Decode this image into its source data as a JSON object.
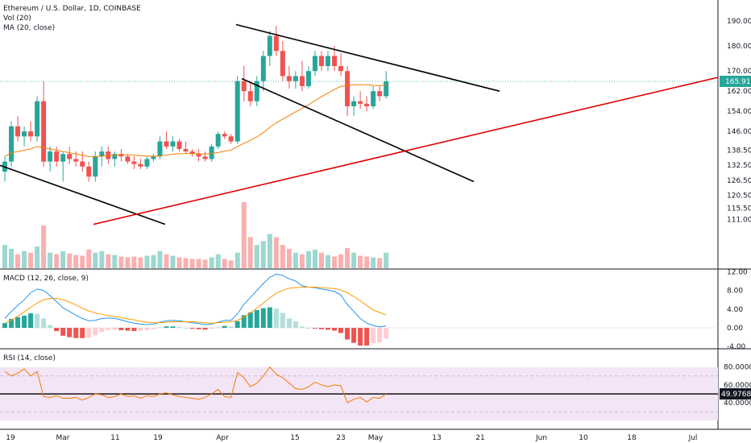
{
  "header": {
    "symbol_title": "Ethereum / U.S. Dollar, 1D, COINBASE",
    "vol_label": "Vol (20)",
    "ma_label": "MA (20, close)"
  },
  "panes": {
    "macd_label": "MACD (12, 26, close, 9)",
    "rsi_label": "RSI (14, close)"
  },
  "price_tag": "165.91",
  "rsi_tag": "49.9768",
  "colors": {
    "up": "#26a69a",
    "down": "#ef5350",
    "ma": "#f57c00",
    "macd_line": "#2196f3",
    "signal_line": "#ff9800",
    "trend_black": "#000000",
    "trend_red": "#e00000",
    "rsi_line": "#f57c00",
    "rsi_band": "#f3e5f5",
    "price_tag_bg": "#26a69a",
    "rsi_tag_bg": "#131722"
  },
  "chart_data": [
    {
      "type": "candlestick",
      "title": "Ethereum / U.S. Dollar, 1D, COINBASE",
      "y_ticks": [
        "190.00",
        "180.00",
        "170.00",
        "162.00",
        "154.00",
        "146.00",
        "138.50",
        "132.50",
        "126.50",
        "120.50",
        "115.50",
        "111.00"
      ],
      "x_ticks": [
        "19",
        "Mar",
        "11",
        "19",
        "Apr",
        "15",
        "23",
        "May",
        "13",
        "21",
        "Jun",
        "10",
        "18",
        "Jul"
      ],
      "last_price": 165.91,
      "candles": [
        {
          "o": 130,
          "h": 136,
          "l": 126,
          "c": 134
        },
        {
          "o": 134,
          "h": 150,
          "l": 132,
          "c": 148
        },
        {
          "o": 148,
          "h": 152,
          "l": 142,
          "c": 144
        },
        {
          "o": 144,
          "h": 148,
          "l": 140,
          "c": 146
        },
        {
          "o": 146,
          "h": 150,
          "l": 142,
          "c": 144
        },
        {
          "o": 144,
          "h": 160,
          "l": 142,
          "c": 158
        },
        {
          "o": 158,
          "h": 166,
          "l": 132,
          "c": 134
        },
        {
          "o": 134,
          "h": 140,
          "l": 130,
          "c": 138
        },
        {
          "o": 138,
          "h": 140,
          "l": 132,
          "c": 134
        },
        {
          "o": 134,
          "h": 138,
          "l": 126,
          "c": 137
        },
        {
          "o": 137,
          "h": 140,
          "l": 133,
          "c": 135
        },
        {
          "o": 135,
          "h": 138,
          "l": 132,
          "c": 134
        },
        {
          "o": 134,
          "h": 138,
          "l": 130,
          "c": 132
        },
        {
          "o": 132,
          "h": 134,
          "l": 126,
          "c": 128
        },
        {
          "o": 128,
          "h": 138,
          "l": 126,
          "c": 136
        },
        {
          "o": 136,
          "h": 140,
          "l": 132,
          "c": 138
        },
        {
          "o": 138,
          "h": 140,
          "l": 133,
          "c": 135
        },
        {
          "o": 135,
          "h": 138,
          "l": 132,
          "c": 137
        },
        {
          "o": 137,
          "h": 139,
          "l": 134,
          "c": 136
        },
        {
          "o": 136,
          "h": 137,
          "l": 133,
          "c": 134
        },
        {
          "o": 134,
          "h": 136,
          "l": 131,
          "c": 133
        },
        {
          "o": 133,
          "h": 135,
          "l": 131,
          "c": 132
        },
        {
          "o": 132,
          "h": 136,
          "l": 131,
          "c": 135
        },
        {
          "o": 135,
          "h": 137,
          "l": 134,
          "c": 136
        },
        {
          "o": 136,
          "h": 144,
          "l": 135,
          "c": 142
        },
        {
          "o": 142,
          "h": 146,
          "l": 139,
          "c": 140
        },
        {
          "o": 140,
          "h": 144,
          "l": 138,
          "c": 142
        },
        {
          "o": 142,
          "h": 143,
          "l": 138,
          "c": 139
        },
        {
          "o": 139,
          "h": 142,
          "l": 137,
          "c": 138
        },
        {
          "o": 138,
          "h": 139,
          "l": 136,
          "c": 137
        },
        {
          "o": 137,
          "h": 139,
          "l": 134,
          "c": 136
        },
        {
          "o": 136,
          "h": 138,
          "l": 134,
          "c": 135
        },
        {
          "o": 135,
          "h": 141,
          "l": 134,
          "c": 140
        },
        {
          "o": 140,
          "h": 146,
          "l": 139,
          "c": 145
        },
        {
          "o": 145,
          "h": 146,
          "l": 143,
          "c": 144
        },
        {
          "o": 144,
          "h": 145,
          "l": 141,
          "c": 142
        },
        {
          "o": 142,
          "h": 168,
          "l": 141,
          "c": 166
        },
        {
          "o": 166,
          "h": 172,
          "l": 158,
          "c": 162
        },
        {
          "o": 162,
          "h": 166,
          "l": 156,
          "c": 158
        },
        {
          "o": 158,
          "h": 168,
          "l": 156,
          "c": 166
        },
        {
          "o": 166,
          "h": 178,
          "l": 162,
          "c": 176
        },
        {
          "o": 176,
          "h": 186,
          "l": 172,
          "c": 184
        },
        {
          "o": 184,
          "h": 188,
          "l": 176,
          "c": 178
        },
        {
          "o": 178,
          "h": 182,
          "l": 166,
          "c": 168
        },
        {
          "o": 168,
          "h": 172,
          "l": 163,
          "c": 166
        },
        {
          "o": 166,
          "h": 170,
          "l": 163,
          "c": 168
        },
        {
          "o": 168,
          "h": 174,
          "l": 162,
          "c": 164
        },
        {
          "o": 164,
          "h": 172,
          "l": 163,
          "c": 170
        },
        {
          "o": 170,
          "h": 178,
          "l": 168,
          "c": 176
        },
        {
          "o": 176,
          "h": 178,
          "l": 170,
          "c": 172
        },
        {
          "o": 172,
          "h": 178,
          "l": 170,
          "c": 176
        },
        {
          "o": 176,
          "h": 180,
          "l": 170,
          "c": 172
        },
        {
          "o": 172,
          "h": 177,
          "l": 168,
          "c": 170
        },
        {
          "o": 170,
          "h": 172,
          "l": 152,
          "c": 156
        },
        {
          "o": 156,
          "h": 160,
          "l": 152,
          "c": 158
        },
        {
          "o": 158,
          "h": 162,
          "l": 155,
          "c": 157
        },
        {
          "o": 157,
          "h": 160,
          "l": 154,
          "c": 156
        },
        {
          "o": 156,
          "h": 164,
          "l": 155,
          "c": 162
        },
        {
          "o": 162,
          "h": 164,
          "l": 158,
          "c": 160
        },
        {
          "o": 160,
          "h": 170,
          "l": 159,
          "c": 165.91
        }
      ],
      "ma20": [
        136,
        137.5,
        138,
        138.5,
        139,
        140,
        139.5,
        139,
        138.5,
        138,
        137.5,
        137,
        136.5,
        136,
        136,
        136.2,
        136.4,
        136.6,
        136.8,
        136.7,
        136.5,
        136.3,
        136.2,
        136.1,
        136.3,
        136.6,
        136.9,
        137.1,
        137.2,
        137.2,
        137.1,
        137,
        137.2,
        137.6,
        138.1,
        138.6,
        140,
        141.3,
        142.4,
        143.8,
        145.5,
        147.6,
        149.4,
        150.9,
        152.3,
        153.8,
        155.1,
        156.6,
        158.3,
        159.8,
        161.3,
        162.7,
        163.9,
        164.3,
        164.6,
        164.6,
        164.5,
        164.3,
        164.2,
        164.6
      ],
      "volume": [
        30,
        25,
        18,
        22,
        20,
        28,
        55,
        20,
        18,
        22,
        19,
        17,
        16,
        24,
        20,
        22,
        18,
        17,
        15,
        14,
        15,
        14,
        16,
        17,
        22,
        18,
        16,
        14,
        13,
        12,
        12,
        11,
        14,
        18,
        12,
        10,
        20,
        85,
        40,
        30,
        35,
        44,
        40,
        30,
        25,
        20,
        18,
        22,
        24,
        20,
        17,
        15,
        18,
        26,
        20,
        16,
        15,
        14,
        13,
        20
      ],
      "macd": [
        2,
        3.5,
        4.8,
        6,
        7.5,
        8.3,
        8,
        6.9,
        5.6,
        4.3,
        3.5,
        2.7,
        2,
        1.5,
        1.6,
        2,
        2.1,
        2,
        1.7,
        1.3,
        1,
        0.8,
        0.7,
        0.8,
        1.2,
        1.5,
        1.6,
        1.5,
        1.3,
        1.1,
        0.9,
        0.7,
        0.8,
        1.2,
        1.6,
        1.6,
        3,
        5,
        6.5,
        8,
        9.5,
        10.8,
        11.5,
        11.2,
        10.5,
        10,
        9,
        8.7,
        8.6,
        8.3,
        8.1,
        7.8,
        7,
        5,
        3.5,
        2,
        1,
        0.5,
        0.2,
        0.4
      ],
      "signal": [
        1,
        1.6,
        2.5,
        3.4,
        4.4,
        5.3,
        6,
        6.3,
        6.3,
        6,
        5.5,
        4.9,
        4.2,
        3.6,
        3.2,
        2.9,
        2.6,
        2.4,
        2.2,
        1.9,
        1.7,
        1.4,
        1.2,
        1.1,
        1.1,
        1.2,
        1.3,
        1.3,
        1.3,
        1.3,
        1.2,
        1.1,
        1,
        1.1,
        1.2,
        1.3,
        1.6,
        2.3,
        3.2,
        4.2,
        5.3,
        6.4,
        7.4,
        8,
        8.5,
        8.6,
        8.7,
        8.7,
        8.7,
        8.6,
        8.5,
        8.4,
        8.1,
        7.5,
        6.7,
        5.8,
        4.8,
        3.8,
        3.3,
        2.7
      ],
      "rsi": [
        75,
        70,
        73,
        78,
        70,
        75,
        47,
        46,
        48,
        45,
        45,
        46,
        43,
        46,
        50,
        49,
        46,
        47,
        50,
        47,
        48,
        45,
        48,
        47,
        50,
        51,
        49,
        47,
        46,
        45,
        44,
        46,
        50,
        55,
        47,
        46,
        74,
        68,
        58,
        62,
        70,
        80,
        72,
        68,
        62,
        56,
        55,
        58,
        63,
        60,
        58,
        60,
        59,
        40,
        44,
        46,
        41,
        46,
        45,
        50
      ]
    }
  ]
}
